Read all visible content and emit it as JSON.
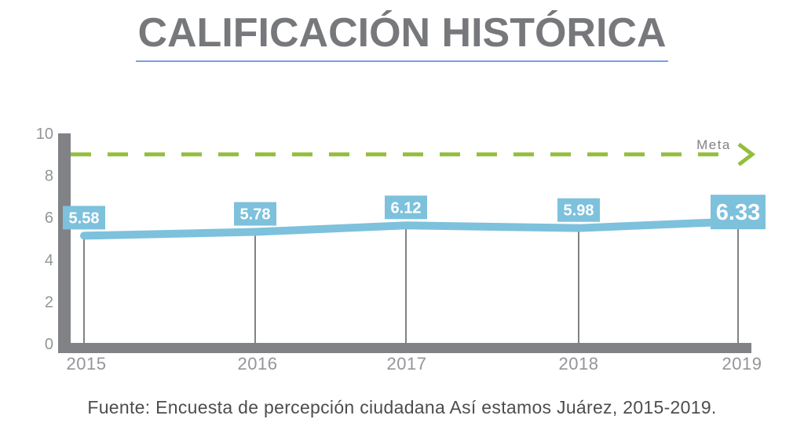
{
  "title": {
    "text": "CALIFICACIÓN HISTÓRICA"
  },
  "source_note": "Fuente: Encuesta de percepción ciudadana Así estamos Juárez, 2015-2019.",
  "chart_data": {
    "type": "line",
    "categories": [
      "2015",
      "2016",
      "2017",
      "2018",
      "2019"
    ],
    "series": [
      {
        "name": "Calificación histórica",
        "values": [
          5.58,
          5.78,
          6.12,
          5.98,
          6.33
        ]
      }
    ],
    "point_labels": [
      "5.58",
      "5.78",
      "6.12",
      "5.98",
      "6.33"
    ],
    "highlight_last": true,
    "goal_line": {
      "label": "Meta",
      "value": 9,
      "style": "dashed",
      "arrow": true
    },
    "ylim": [
      0,
      10
    ],
    "yticks": [
      0,
      2,
      4,
      6,
      8,
      10
    ],
    "xlabel": "",
    "ylabel": "",
    "grid": false,
    "legend": "none"
  },
  "colors": {
    "line": "#7DC1DC",
    "label_bg": "#7DC1DC",
    "label_text": "#FFFFFF",
    "goal": "#93BE3D",
    "axis": "#808285",
    "drop_line": "#808285",
    "tick_text": "#939598",
    "title_text": "#77787B",
    "title_underline": "#7B9FE3",
    "source_text": "#4D4D4F"
  }
}
